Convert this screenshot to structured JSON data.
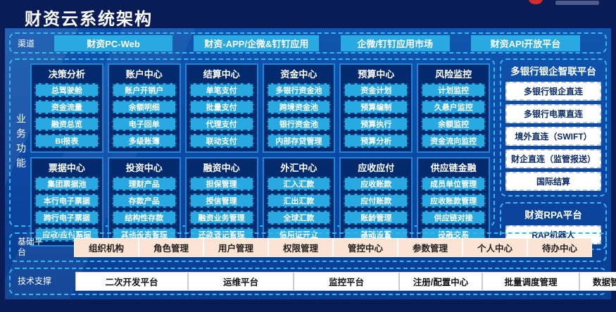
{
  "header": {
    "title": "财资云系统架构"
  },
  "channels": {
    "label": "渠道",
    "items": [
      "财资PC-Web",
      "财资-APP/企微&钉钉应用",
      "企微/钉钉应用市场",
      "财资API开放平台"
    ]
  },
  "business": {
    "label": "业务功能",
    "modules": [
      {
        "title": "决策分析",
        "items": [
          "总驾驶舱",
          "资金流量",
          "融资总览",
          "BI报表"
        ]
      },
      {
        "title": "账户中心",
        "items": [
          "账户开销户",
          "余额明细",
          "电子回单",
          "多级账簿"
        ]
      },
      {
        "title": "结算中心",
        "items": [
          "单笔支付",
          "批量支付",
          "代理支付",
          "联动支付"
        ]
      },
      {
        "title": "资金中心",
        "items": [
          "多银行资金池",
          "跨境资金池",
          "银行资金池",
          "内部存贷管理"
        ]
      },
      {
        "title": "预算中心",
        "items": [
          "资金计划",
          "预算编制",
          "预算执行",
          "预算分析"
        ]
      },
      {
        "title": "风险监控",
        "items": [
          "计划监控",
          "久悬户监控",
          "余额监控",
          "资金流向监控"
        ]
      },
      {
        "title": "票据中心",
        "items": [
          "集团票据池",
          "本行电子票据",
          "跨行电子票据",
          "应收/应付票据"
        ]
      },
      {
        "title": "投资中心",
        "items": [
          "理财产品",
          "存款产品",
          "结构性存款",
          "其他投资管理"
        ]
      },
      {
        "title": "融资中心",
        "items": [
          "担保管理",
          "授信管理",
          "融资业务管理",
          "还款登记管理"
        ]
      },
      {
        "title": "外汇中心",
        "items": [
          "汇入汇款",
          "汇出汇款",
          "全球汇款",
          "信用证开立"
        ]
      },
      {
        "title": "应收应付",
        "items": [
          "应收账款",
          "应付账款",
          "账龄管理",
          "基础设置"
        ]
      },
      {
        "title": "供应链金融",
        "items": [
          "成员单位管理",
          "应收账款管理",
          "供应链对接",
          "投融交易"
        ]
      }
    ]
  },
  "right_panels": [
    {
      "title": "多银行银企智联平台",
      "items": [
        "多银行银企直连",
        "多银行电票直连",
        "境外直连（SWIFT）",
        "财企直连（监管报送）",
        "国际结算"
      ]
    },
    {
      "title": "财资RPA平台",
      "items": [
        "RAP机器人"
      ]
    }
  ],
  "platform_row": {
    "label": "基础平台",
    "items": [
      "组织机构",
      "角色管理",
      "用户管理",
      "权限管理",
      "管控中心",
      "参数管理",
      "个人中心",
      "待办中心"
    ]
  },
  "tech_row": {
    "label": "技术支撑",
    "items": [
      "二次开发平台",
      "运维平台",
      "监控平台",
      "注册/配置中心",
      "批量调度管理",
      "数据智能分析平台"
    ]
  },
  "colors": {
    "background_dark": "#0a1c55",
    "main_blue": "#0c46a0",
    "dashed_border": "#37b7ef",
    "module_bg": "#042a6e",
    "module_border": "#1d86d8",
    "chip_cyan": "#29a9e1",
    "chip_cream": "#fbe4d3",
    "chip_white": "#ffffff",
    "logo_red": "#d42b2b",
    "text_white": "#ffffff",
    "text_dark": "#0b2b66"
  }
}
